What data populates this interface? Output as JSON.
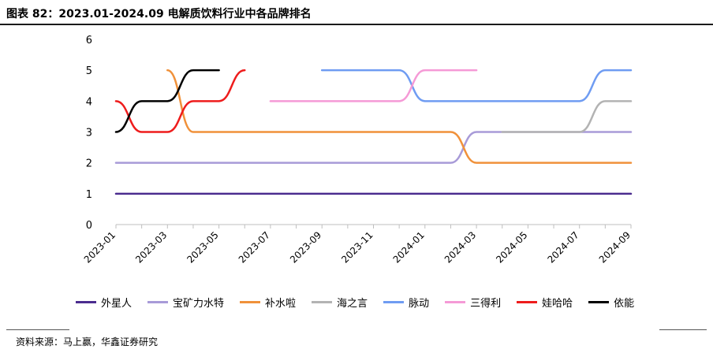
{
  "title": "图表 82：2023.01-2024.09 电解质饮料行业中各品牌排名",
  "source": "资料来源：马上赢，华鑫证券研究",
  "chart_data": {
    "type": "line",
    "x_tick_labels": [
      "2023-01",
      "2023-03",
      "2023-05",
      "2023-07",
      "2023-09",
      "2023-11",
      "2024-01",
      "2024-03",
      "2024-05",
      "2024-07",
      "2024-09"
    ],
    "x_months": [
      "2023-01",
      "2023-02",
      "2023-03",
      "2023-04",
      "2023-05",
      "2023-06",
      "2023-07",
      "2023-08",
      "2023-09",
      "2023-10",
      "2023-11",
      "2023-12",
      "2024-01",
      "2024-02",
      "2024-03",
      "2024-04",
      "2024-05",
      "2024-06",
      "2024-07",
      "2024-08",
      "2024-09"
    ],
    "ylim": [
      0,
      6
    ],
    "y_ticks": [
      0,
      1,
      2,
      3,
      4,
      5,
      6
    ],
    "grid": false,
    "legend_position": "bottom",
    "series": [
      {
        "name": "外星人",
        "color": "#4b2c8f",
        "values": [
          1,
          1,
          1,
          1,
          1,
          1,
          1,
          1,
          1,
          1,
          1,
          1,
          1,
          1,
          1,
          1,
          1,
          1,
          1,
          1,
          1
        ]
      },
      {
        "name": "宝矿力水特",
        "color": "#a89bd8",
        "values": [
          2,
          2,
          2,
          2,
          2,
          2,
          2,
          2,
          2,
          2,
          2,
          2,
          2,
          2,
          3,
          3,
          3,
          3,
          3,
          3,
          3
        ]
      },
      {
        "name": "补水啦",
        "color": "#f0913a",
        "values": [
          null,
          null,
          5,
          3,
          3,
          3,
          3,
          3,
          3,
          3,
          3,
          3,
          3,
          3,
          2,
          2,
          2,
          2,
          2,
          2,
          2
        ]
      },
      {
        "name": "海之言",
        "color": "#b3b3b3",
        "values": [
          null,
          null,
          null,
          null,
          null,
          null,
          null,
          null,
          null,
          null,
          null,
          null,
          null,
          null,
          null,
          3,
          3,
          3,
          3,
          4,
          4
        ]
      },
      {
        "name": "脉动",
        "color": "#6f9cf2",
        "values": [
          null,
          null,
          null,
          null,
          null,
          null,
          null,
          null,
          5,
          5,
          5,
          5,
          4,
          4,
          4,
          4,
          4,
          4,
          4,
          5,
          5
        ]
      },
      {
        "name": "三得利",
        "color": "#f59ad6",
        "values": [
          null,
          null,
          null,
          null,
          null,
          null,
          4,
          4,
          4,
          4,
          4,
          4,
          5,
          5,
          5,
          null,
          null,
          null,
          null,
          null,
          null
        ]
      },
      {
        "name": "娃哈哈",
        "color": "#ee1c1c",
        "values": [
          4,
          3,
          3,
          4,
          4,
          5,
          null,
          null,
          null,
          null,
          null,
          null,
          null,
          null,
          null,
          null,
          null,
          null,
          null,
          null,
          null
        ]
      },
      {
        "name": "依能",
        "color": "#000000",
        "values": [
          3,
          4,
          4,
          5,
          5,
          null,
          null,
          null,
          null,
          null,
          null,
          null,
          null,
          null,
          null,
          null,
          null,
          null,
          null,
          null,
          null
        ]
      }
    ]
  }
}
